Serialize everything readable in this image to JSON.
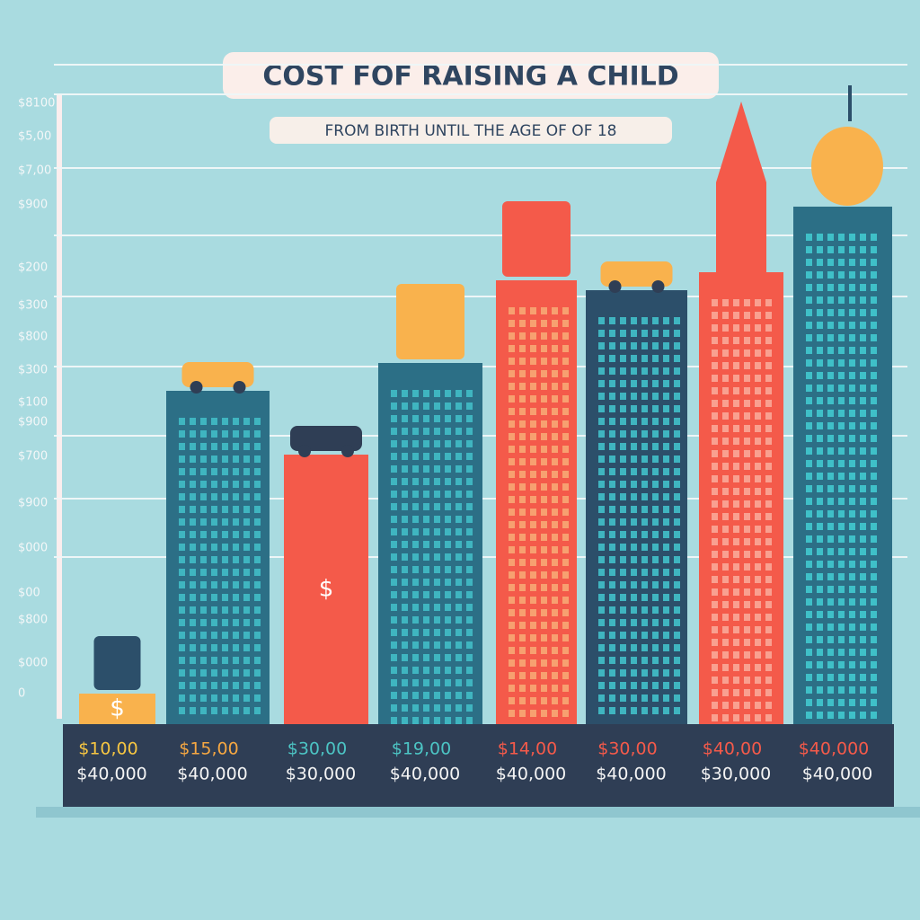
{
  "header": {
    "title": "COST FOF RAISING A CHILD",
    "subtitle": "FROM BIRTH UNTIL THE AGE OF OF 18"
  },
  "axis_labels": [
    "$8100",
    "$5,00",
    "$7,00",
    "$900",
    "$200",
    "$300",
    "$800",
    "$300",
    "$100",
    "$900",
    "$700",
    "$900",
    "$000",
    "$00",
    "$800",
    "$000",
    "0"
  ],
  "buildings": [
    {
      "label_top": "$10,00",
      "label_bottom": "$40,000"
    },
    {
      "label_top": "$15,00",
      "label_bottom": "$40,000"
    },
    {
      "label_top": "$30,00",
      "label_bottom": "$30,000"
    },
    {
      "label_top": "$19,00",
      "label_bottom": "$40,000"
    },
    {
      "label_top": "$14,00",
      "label_bottom": "$40,000"
    },
    {
      "label_top": "$30,00",
      "label_bottom": "$40,000"
    },
    {
      "label_top": "$40,00",
      "label_bottom": "$30,000"
    },
    {
      "label_top": "$40,000",
      "label_bottom": "$40,000"
    }
  ]
}
